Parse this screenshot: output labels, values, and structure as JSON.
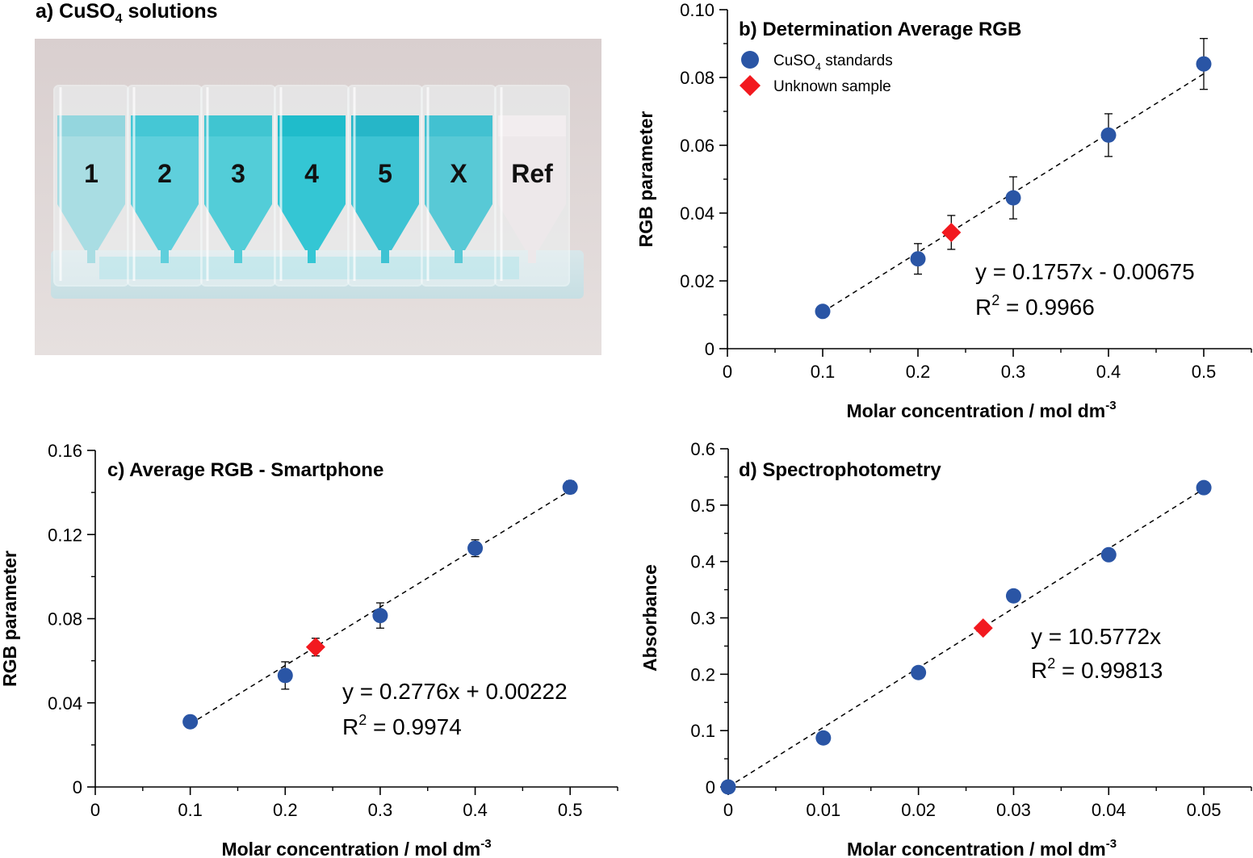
{
  "panel_a": {
    "title": "a) CuSO",
    "title_sub": "4",
    "title_suffix": " solutions",
    "cuvette_labels": [
      "1",
      "2",
      "3",
      "4",
      "5",
      "X",
      "Ref"
    ]
  },
  "colors": {
    "standards": "#2a55a5",
    "unknown": "#f2191f",
    "photo_background": "#ddd6d6"
  },
  "chart_data": [
    {
      "panel": "b",
      "type": "scatter",
      "title": "b) Determination Average RGB",
      "xlabel": "Molar concentration / mol dm",
      "xlabel_sup": "-3",
      "ylabel": "RGB parameter",
      "xlim": [
        0,
        0.55
      ],
      "ylim": [
        0,
        0.1
      ],
      "xticks": [
        "0",
        "0.1",
        "0.2",
        "0.3",
        "0.4",
        "0.5"
      ],
      "yticks": [
        "0",
        "0.02",
        "0.04",
        "0.06",
        "0.08",
        "0.10"
      ],
      "legend": {
        "position": "top-left",
        "entries": [
          {
            "name": "CuSO",
            "sub": "4",
            "suffix": " standards",
            "marker": "circle"
          },
          {
            "name": "Unknown sample",
            "sub": "",
            "suffix": "",
            "marker": "diamond"
          }
        ]
      },
      "series": [
        {
          "name": "CuSO4 standards",
          "marker": "circle",
          "x": [
            0.1,
            0.2,
            0.3,
            0.4,
            0.5
          ],
          "y": [
            0.011,
            0.0265,
            0.0445,
            0.063,
            0.084
          ],
          "err": [
            0,
            0.0045,
            0.0062,
            0.0063,
            0.0075
          ]
        },
        {
          "name": "Unknown sample",
          "marker": "diamond",
          "x": [
            0.235
          ],
          "y": [
            0.0343
          ],
          "err": [
            0.005
          ]
        }
      ],
      "fit": {
        "slope": 0.1757,
        "intercept": -0.00675,
        "x_range": [
          0.1,
          0.5
        ]
      },
      "equation": "y = 0.1757x - 0.00675",
      "r2_label": "R",
      "r2_sup": "2",
      "r2_value": " = 0.9966"
    },
    {
      "panel": "c",
      "type": "scatter",
      "title": "c) Average RGB - Smartphone",
      "xlabel": "Molar concentration / mol dm",
      "xlabel_sup": "-3",
      "ylabel": "RGB parameter",
      "xlim": [
        0,
        0.55
      ],
      "ylim": [
        0,
        0.16
      ],
      "xticks": [
        "0",
        "0.1",
        "0.2",
        "0.3",
        "0.4",
        "0.5"
      ],
      "yticks": [
        "0",
        "0.04",
        "0.08",
        "0.12",
        "0.16"
      ],
      "series": [
        {
          "name": "CuSO4 standards",
          "marker": "circle",
          "x": [
            0.1,
            0.2,
            0.3,
            0.4,
            0.5
          ],
          "y": [
            0.031,
            0.053,
            0.0815,
            0.1135,
            0.1425
          ],
          "err": [
            0,
            0.0065,
            0.006,
            0.004,
            0.003
          ]
        },
        {
          "name": "Unknown sample",
          "marker": "diamond",
          "x": [
            0.232
          ],
          "y": [
            0.0665
          ],
          "err": [
            0.0042
          ]
        }
      ],
      "fit": {
        "slope": 0.2776,
        "intercept": 0.00222,
        "x_range": [
          0.1,
          0.5
        ]
      },
      "equation": "y = 0.2776x + 0.00222",
      "r2_label": "R",
      "r2_sup": "2",
      "r2_value": " = 0.9974"
    },
    {
      "panel": "d",
      "type": "scatter",
      "title": "d) Spectrophotometry",
      "xlabel": "Molar concentration / mol dm",
      "xlabel_sup": "-3",
      "ylabel": "Absorbance",
      "xlim": [
        0,
        0.055
      ],
      "ylim": [
        0,
        0.6
      ],
      "xticks": [
        "0",
        "0.01",
        "0.02",
        "0.03",
        "0.04",
        "0.05"
      ],
      "yticks": [
        "0",
        "0.1",
        "0.2",
        "0.3",
        "0.4",
        "0.5",
        "0.6"
      ],
      "series": [
        {
          "name": "CuSO4 standards",
          "marker": "circle",
          "x": [
            0,
            0.01,
            0.02,
            0.03,
            0.04,
            0.05
          ],
          "y": [
            0,
            0.087,
            0.203,
            0.339,
            0.412,
            0.531
          ],
          "err": [
            0,
            0,
            0,
            0,
            0,
            0
          ]
        },
        {
          "name": "Unknown sample",
          "marker": "diamond",
          "x": [
            0.0268
          ],
          "y": [
            0.282
          ],
          "err": [
            0
          ]
        }
      ],
      "fit": {
        "slope": 10.5772,
        "intercept": 0,
        "x_range": [
          0,
          0.05
        ]
      },
      "equation": "y = 10.5772x",
      "r2_label": "R",
      "r2_sup": "2",
      "r2_value": " = 0.99813"
    }
  ]
}
